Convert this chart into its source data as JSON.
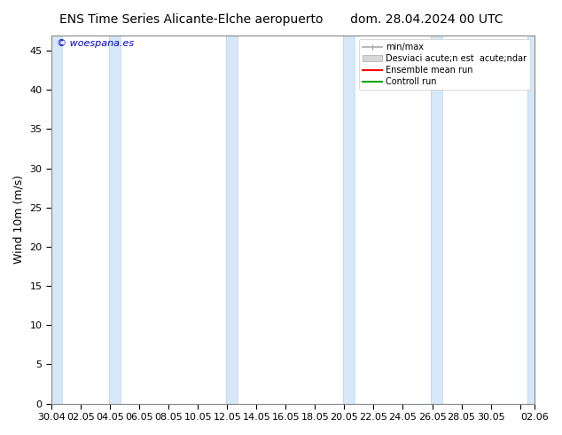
{
  "title": "ENS Time Series Alicante-Elche aeropuerto       dom. 28.04.2024 00 UTC",
  "ylabel": "Wind 10m (m/s)",
  "ylim": [
    0,
    47
  ],
  "yticks": [
    0,
    5,
    10,
    15,
    20,
    25,
    30,
    35,
    40,
    45
  ],
  "watermark": "© woespana.es",
  "watermark_color": "#0000cc",
  "bg_color": "#ffffff",
  "plot_bg_color": "#ffffff",
  "band_color": "#d6e8f7",
  "band_edge_color": "#b8d4ea",
  "legend_entries": [
    "min/max",
    "Desviaci acute;n est  acute;ndar",
    "Ensemble mean run",
    "Controll run"
  ],
  "legend_colors": [
    "#aaaaaa",
    "#cccccc",
    "#ff0000",
    "#00aa00"
  ],
  "x_tick_labels": [
    "30.04",
    "02.05",
    "04.05",
    "06.05",
    "08.05",
    "10.05",
    "12.05",
    "14.05",
    "16.05",
    "18.05",
    "20.05",
    "22.05",
    "24.05",
    "26.05",
    "28.05",
    "30.05",
    "  ",
    "02.06"
  ],
  "title_fontsize": 10,
  "axis_fontsize": 9,
  "tick_fontsize": 8,
  "legend_fontsize": 7
}
